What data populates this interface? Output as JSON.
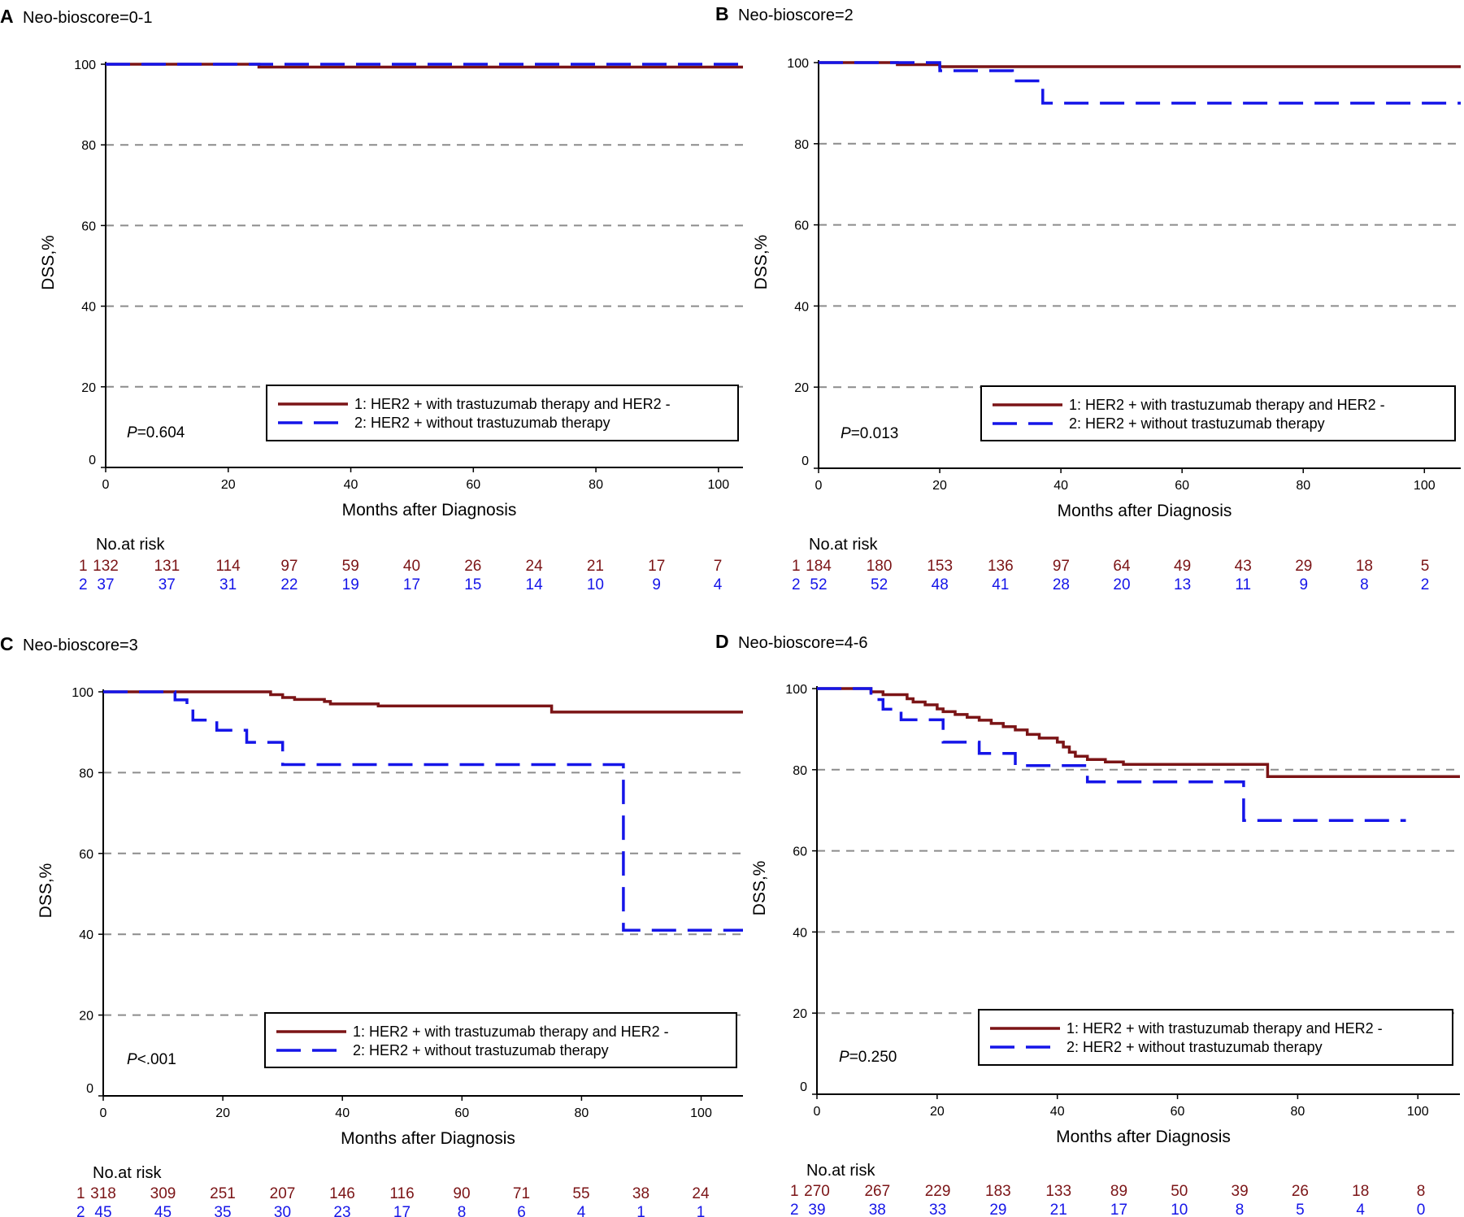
{
  "figure": {
    "panel_letters": [
      "A",
      "B",
      "C",
      "D"
    ],
    "colors": {
      "series1": "#7b1416",
      "series2": "#1515e8",
      "axis": "#000000",
      "grid": "#8c8c8c"
    }
  },
  "chart_data": [
    {
      "type": "line",
      "letter": "A",
      "title": "Neo-bioscore=0-1",
      "xlabel": "Months after Diagnosis",
      "ylabel": "DSS,%",
      "xlim": [
        0,
        104
      ],
      "ylim": [
        0,
        100
      ],
      "xticks": [
        "0",
        "20",
        "40",
        "60",
        "80",
        "100"
      ],
      "yticks": [
        "0",
        "20",
        "40",
        "60",
        "80",
        "100"
      ],
      "pvalue": {
        "prefix": "P",
        "text": "=0.604"
      },
      "legend": {
        "position": "bottom-right",
        "entries": [
          "1: HER2 + with trastuzumab therapy and HER2 -",
          "2: HER2 + without trastuzumab therapy"
        ]
      },
      "series": [
        {
          "name": "1: HER2 + with trastuzumab therapy and HER2 -",
          "style": "solid",
          "points": [
            [
              0,
              100
            ],
            [
              25,
              100
            ],
            [
              25,
              99.3
            ],
            [
              104,
              99.3
            ]
          ]
        },
        {
          "name": "2: HER2 + without trastuzumab therapy",
          "style": "dashed",
          "points": [
            [
              0,
              100
            ],
            [
              104,
              100
            ]
          ]
        }
      ],
      "risk_table": {
        "title": "No.at risk",
        "rows": [
          {
            "label": "1",
            "values": [
              "132",
              "131",
              "114",
              "97",
              "59",
              "40",
              "26",
              "24",
              "21",
              "17",
              "7"
            ]
          },
          {
            "label": "2",
            "values": [
              "37",
              "37",
              "31",
              "22",
              "19",
              "17",
              "15",
              "14",
              "10",
              "9",
              "4"
            ]
          }
        ]
      }
    },
    {
      "type": "line",
      "letter": "B",
      "title": "Neo-bioscore=2",
      "xlabel": "Months after Diagnosis",
      "ylabel": "DSS,%",
      "xlim": [
        0,
        106
      ],
      "ylim": [
        0,
        100
      ],
      "xticks": [
        "0",
        "20",
        "40",
        "60",
        "80",
        "100"
      ],
      "yticks": [
        "0",
        "20",
        "40",
        "60",
        "80",
        "100"
      ],
      "pvalue": {
        "prefix": "P",
        "text": "=0.013"
      },
      "legend": {
        "position": "bottom-right",
        "entries": [
          "1: HER2 + with trastuzumab therapy and HER2 -",
          "2: HER2 + without trastuzumab therapy"
        ]
      },
      "series": [
        {
          "name": "1: HER2 + with trastuzumab therapy and HER2 -",
          "style": "solid",
          "points": [
            [
              0,
              100
            ],
            [
              13,
              100
            ],
            [
              13,
              99.5
            ],
            [
              20,
              99.5
            ],
            [
              20,
              99
            ],
            [
              106,
              99
            ]
          ]
        },
        {
          "name": "2: HER2 + without trastuzumab therapy",
          "style": "dashed",
          "points": [
            [
              0,
              100
            ],
            [
              20,
              100
            ],
            [
              20,
              98
            ],
            [
              32,
              98
            ],
            [
              32,
              95.5
            ],
            [
              37,
              95.5
            ],
            [
              37,
              90
            ],
            [
              106,
              90
            ]
          ]
        }
      ],
      "risk_table": {
        "title": "No.at risk",
        "rows": [
          {
            "label": "1",
            "values": [
              "184",
              "180",
              "153",
              "136",
              "97",
              "64",
              "49",
              "43",
              "29",
              "18",
              "5"
            ]
          },
          {
            "label": "2",
            "values": [
              "52",
              "52",
              "48",
              "41",
              "28",
              "20",
              "13",
              "11",
              "9",
              "8",
              "2"
            ]
          }
        ]
      }
    },
    {
      "type": "line",
      "letter": "C",
      "title": "Neo-bioscore=3",
      "xlabel": "Months after Diagnosis",
      "ylabel": "DSS,%",
      "xlim": [
        0,
        107
      ],
      "ylim": [
        0,
        100
      ],
      "xticks": [
        "0",
        "20",
        "40",
        "60",
        "80",
        "100"
      ],
      "yticks": [
        "0",
        "20",
        "40",
        "60",
        "80",
        "100"
      ],
      "pvalue": {
        "prefix": "P",
        "text": "<.001"
      },
      "legend": {
        "position": "bottom-right",
        "entries": [
          "1: HER2 + with trastuzumab therapy and HER2 -",
          "2: HER2 + without trastuzumab therapy"
        ]
      },
      "series": [
        {
          "name": "1: HER2 + with trastuzumab therapy and HER2 -",
          "style": "solid",
          "points": [
            [
              0,
              100
            ],
            [
              28,
              100
            ],
            [
              28,
              99.3
            ],
            [
              30,
              99.3
            ],
            [
              30,
              98.6
            ],
            [
              32,
              98.6
            ],
            [
              32,
              98.1
            ],
            [
              37,
              98.1
            ],
            [
              37,
              97.6
            ],
            [
              38,
              97.6
            ],
            [
              38,
              97
            ],
            [
              46,
              97
            ],
            [
              46,
              96.5
            ],
            [
              75,
              96.5
            ],
            [
              75,
              95
            ],
            [
              107,
              95
            ]
          ]
        },
        {
          "name": "2: HER2 + without trastuzumab therapy",
          "style": "dashed",
          "points": [
            [
              0,
              100
            ],
            [
              12,
              100
            ],
            [
              12,
              98
            ],
            [
              14,
              98
            ],
            [
              14,
              96
            ],
            [
              15,
              96
            ],
            [
              15,
              93
            ],
            [
              19,
              93
            ],
            [
              19,
              90.5
            ],
            [
              24,
              90.5
            ],
            [
              24,
              87.5
            ],
            [
              30,
              87.5
            ],
            [
              30,
              82
            ],
            [
              87,
              82
            ],
            [
              87,
              41
            ],
            [
              107,
              41
            ]
          ]
        }
      ],
      "risk_table": {
        "title": "No.at risk",
        "rows": [
          {
            "label": "1",
            "values": [
              "318",
              "309",
              "251",
              "207",
              "146",
              "116",
              "90",
              "71",
              "55",
              "38",
              "24"
            ]
          },
          {
            "label": "2",
            "values": [
              "45",
              "45",
              "35",
              "30",
              "23",
              "17",
              "8",
              "6",
              "4",
              "1",
              "1"
            ]
          }
        ]
      }
    },
    {
      "type": "line",
      "letter": "D",
      "title": "Neo-bioscore=4-6",
      "xlabel": "Months after Diagnosis",
      "ylabel": "DSS,%",
      "xlim": [
        0,
        107
      ],
      "ylim": [
        0,
        100
      ],
      "xticks": [
        "0",
        "20",
        "40",
        "60",
        "80",
        "100"
      ],
      "yticks": [
        "0",
        "20",
        "40",
        "60",
        "80",
        "100"
      ],
      "pvalue": {
        "prefix": "P",
        "text": "=0.250"
      },
      "legend": {
        "position": "bottom-right",
        "entries": [
          "1: HER2 + with trastuzumab therapy and HER2 -",
          "2: HER2 + without trastuzumab therapy"
        ]
      },
      "series": [
        {
          "name": "1: HER2 + with trastuzumab therapy and HER2 -",
          "style": "solid",
          "points": [
            [
              0,
              100
            ],
            [
              9,
              100
            ],
            [
              9,
              99.2
            ],
            [
              11,
              99.2
            ],
            [
              11,
              98.5
            ],
            [
              15,
              98.5
            ],
            [
              15,
              97.5
            ],
            [
              16,
              97.5
            ],
            [
              16,
              96.7
            ],
            [
              18,
              96.7
            ],
            [
              18,
              96
            ],
            [
              20,
              96
            ],
            [
              20,
              95
            ],
            [
              21,
              95
            ],
            [
              21,
              94.3
            ],
            [
              23,
              94.3
            ],
            [
              23,
              93.6
            ],
            [
              25,
              93.6
            ],
            [
              25,
              92.9
            ],
            [
              27,
              92.9
            ],
            [
              27,
              92.2
            ],
            [
              29,
              92.2
            ],
            [
              29,
              91.4
            ],
            [
              31,
              91.4
            ],
            [
              31,
              90.6
            ],
            [
              33,
              90.6
            ],
            [
              33,
              89.8
            ],
            [
              35,
              89.8
            ],
            [
              35,
              88.7
            ],
            [
              37,
              88.7
            ],
            [
              37,
              87.8
            ],
            [
              40,
              87.8
            ],
            [
              40,
              86.8
            ],
            [
              41,
              86.8
            ],
            [
              41,
              85.6
            ],
            [
              42,
              85.6
            ],
            [
              42,
              84.3
            ],
            [
              43,
              84.3
            ],
            [
              43,
              83.3
            ],
            [
              45,
              83.3
            ],
            [
              45,
              82.5
            ],
            [
              48,
              82.5
            ],
            [
              48,
              81.9
            ],
            [
              51,
              81.9
            ],
            [
              51,
              81.3
            ],
            [
              75,
              81.3
            ],
            [
              75,
              78.3
            ],
            [
              107,
              78.3
            ]
          ]
        },
        {
          "name": "2: HER2 + without trastuzumab therapy",
          "style": "dashed",
          "points": [
            [
              0,
              100
            ],
            [
              9,
              100
            ],
            [
              9,
              97.3
            ],
            [
              11,
              97.3
            ],
            [
              11,
              94.9
            ],
            [
              14,
              94.9
            ],
            [
              14,
              92.3
            ],
            [
              21,
              92.3
            ],
            [
              21,
              86.8
            ],
            [
              27,
              86.8
            ],
            [
              27,
              84
            ],
            [
              33,
              84
            ],
            [
              33,
              81
            ],
            [
              45,
              81
            ],
            [
              45,
              77
            ],
            [
              71,
              77
            ],
            [
              71,
              67.5
            ],
            [
              98,
              67.5
            ]
          ]
        }
      ],
      "risk_table": {
        "title": "No.at risk",
        "rows": [
          {
            "label": "1",
            "values": [
              "270",
              "267",
              "229",
              "183",
              "133",
              "89",
              "50",
              "39",
              "26",
              "18",
              "8"
            ]
          },
          {
            "label": "2",
            "values": [
              "39",
              "38",
              "33",
              "29",
              "21",
              "17",
              "10",
              "8",
              "5",
              "4",
              "0"
            ]
          }
        ]
      }
    }
  ]
}
